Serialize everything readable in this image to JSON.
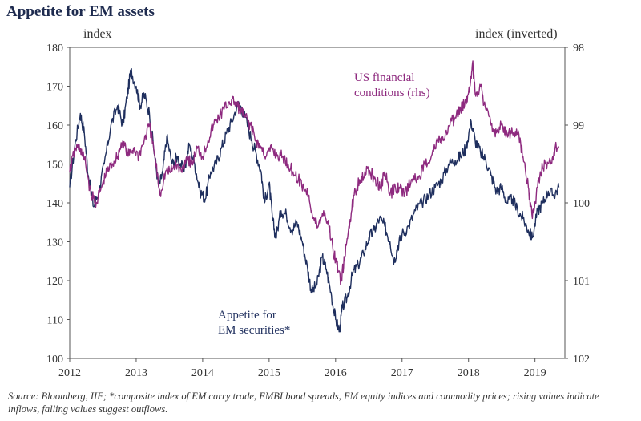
{
  "chart_data": {
    "type": "line",
    "title": "Appetite for EM assets",
    "left_axis": {
      "label": "index",
      "ylim": [
        100,
        180
      ],
      "ticks": [
        100,
        110,
        120,
        130,
        140,
        150,
        160,
        170,
        180
      ]
    },
    "right_axis": {
      "label": "index (inverted)",
      "ylim": [
        98,
        102
      ],
      "inverted": true,
      "ticks": [
        98,
        99,
        100,
        101,
        102
      ]
    },
    "x_axis": {
      "xlim": [
        2012,
        2019.45
      ],
      "ticks": [
        "2012",
        "2013",
        "2014",
        "2015",
        "2016",
        "2017",
        "2018",
        "2019"
      ]
    },
    "series": [
      {
        "name": "Appetite for EM securities*",
        "axis": "left",
        "color": "#1f2f5e",
        "annotation": "Appetite for\nEM securities*",
        "points": [
          [
            2012.0,
            144
          ],
          [
            2012.08,
            155
          ],
          [
            2012.16,
            163
          ],
          [
            2012.22,
            158
          ],
          [
            2012.28,
            147
          ],
          [
            2012.36,
            139
          ],
          [
            2012.44,
            143
          ],
          [
            2012.52,
            150
          ],
          [
            2012.62,
            160
          ],
          [
            2012.72,
            165
          ],
          [
            2012.8,
            160
          ],
          [
            2012.86,
            167
          ],
          [
            2012.92,
            174
          ],
          [
            2013.0,
            170
          ],
          [
            2013.06,
            165
          ],
          [
            2013.12,
            168
          ],
          [
            2013.2,
            163
          ],
          [
            2013.28,
            152
          ],
          [
            2013.34,
            144
          ],
          [
            2013.4,
            148
          ],
          [
            2013.46,
            157
          ],
          [
            2013.54,
            150
          ],
          [
            2013.62,
            152
          ],
          [
            2013.72,
            148
          ],
          [
            2013.8,
            155
          ],
          [
            2013.88,
            150
          ],
          [
            2013.96,
            143
          ],
          [
            2014.04,
            141
          ],
          [
            2014.12,
            148
          ],
          [
            2014.2,
            150
          ],
          [
            2014.28,
            154
          ],
          [
            2014.36,
            158
          ],
          [
            2014.44,
            161
          ],
          [
            2014.54,
            166
          ],
          [
            2014.64,
            162
          ],
          [
            2014.74,
            156
          ],
          [
            2014.8,
            153
          ],
          [
            2014.88,
            148
          ],
          [
            2014.93,
            140
          ],
          [
            2015.0,
            145
          ],
          [
            2015.05,
            136
          ],
          [
            2015.1,
            131
          ],
          [
            2015.18,
            138
          ],
          [
            2015.26,
            137
          ],
          [
            2015.34,
            133
          ],
          [
            2015.42,
            135
          ],
          [
            2015.5,
            130
          ],
          [
            2015.58,
            123
          ],
          [
            2015.64,
            117
          ],
          [
            2015.72,
            119
          ],
          [
            2015.8,
            126
          ],
          [
            2015.86,
            123
          ],
          [
            2015.94,
            116
          ],
          [
            2016.0,
            110
          ],
          [
            2016.06,
            107
          ],
          [
            2016.1,
            113
          ],
          [
            2016.18,
            116
          ],
          [
            2016.26,
            122
          ],
          [
            2016.34,
            124
          ],
          [
            2016.42,
            127
          ],
          [
            2016.5,
            131
          ],
          [
            2016.58,
            133
          ],
          [
            2016.66,
            136
          ],
          [
            2016.74,
            134
          ],
          [
            2016.82,
            130
          ],
          [
            2016.88,
            125
          ],
          [
            2016.94,
            129
          ],
          [
            2017.0,
            132
          ],
          [
            2017.1,
            134
          ],
          [
            2017.2,
            138
          ],
          [
            2017.3,
            140
          ],
          [
            2017.4,
            142
          ],
          [
            2017.5,
            144
          ],
          [
            2017.6,
            146
          ],
          [
            2017.7,
            150
          ],
          [
            2017.8,
            151
          ],
          [
            2017.88,
            152
          ],
          [
            2017.96,
            154
          ],
          [
            2018.04,
            161
          ],
          [
            2018.1,
            156
          ],
          [
            2018.18,
            153
          ],
          [
            2018.26,
            151
          ],
          [
            2018.34,
            147
          ],
          [
            2018.42,
            143
          ],
          [
            2018.5,
            144
          ],
          [
            2018.58,
            140
          ],
          [
            2018.66,
            141
          ],
          [
            2018.74,
            138
          ],
          [
            2018.82,
            136
          ],
          [
            2018.9,
            133
          ],
          [
            2018.96,
            131
          ],
          [
            2019.04,
            138
          ],
          [
            2019.12,
            140
          ],
          [
            2019.2,
            143
          ],
          [
            2019.28,
            142
          ],
          [
            2019.36,
            144
          ]
        ]
      },
      {
        "name": "US financial conditions (rhs)",
        "axis": "right",
        "color": "#8e2a7f",
        "annotation": "US financial\nconditions (rhs)",
        "points": [
          [
            2012.0,
            99.6
          ],
          [
            2012.08,
            99.3
          ],
          [
            2012.16,
            99.3
          ],
          [
            2012.24,
            99.5
          ],
          [
            2012.32,
            99.9
          ],
          [
            2012.4,
            100.0
          ],
          [
            2012.48,
            99.8
          ],
          [
            2012.56,
            99.6
          ],
          [
            2012.64,
            99.5
          ],
          [
            2012.72,
            99.4
          ],
          [
            2012.8,
            99.2
          ],
          [
            2012.88,
            99.4
          ],
          [
            2012.96,
            99.3
          ],
          [
            2013.04,
            99.4
          ],
          [
            2013.12,
            99.2
          ],
          [
            2013.2,
            99.0
          ],
          [
            2013.28,
            99.4
          ],
          [
            2013.36,
            99.9
          ],
          [
            2013.44,
            99.6
          ],
          [
            2013.52,
            99.6
          ],
          [
            2013.6,
            99.5
          ],
          [
            2013.68,
            99.6
          ],
          [
            2013.76,
            99.4
          ],
          [
            2013.84,
            99.5
          ],
          [
            2013.92,
            99.3
          ],
          [
            2014.0,
            99.4
          ],
          [
            2014.08,
            99.2
          ],
          [
            2014.16,
            99.0
          ],
          [
            2014.24,
            98.9
          ],
          [
            2014.32,
            98.8
          ],
          [
            2014.4,
            98.7
          ],
          [
            2014.48,
            98.7
          ],
          [
            2014.56,
            98.8
          ],
          [
            2014.64,
            98.9
          ],
          [
            2014.72,
            99.0
          ],
          [
            2014.8,
            99.2
          ],
          [
            2014.88,
            99.3
          ],
          [
            2014.96,
            99.4
          ],
          [
            2015.04,
            99.3
          ],
          [
            2015.12,
            99.4
          ],
          [
            2015.2,
            99.4
          ],
          [
            2015.28,
            99.5
          ],
          [
            2015.36,
            99.6
          ],
          [
            2015.44,
            99.7
          ],
          [
            2015.52,
            99.8
          ],
          [
            2015.6,
            99.9
          ],
          [
            2015.66,
            100.2
          ],
          [
            2015.74,
            100.3
          ],
          [
            2015.82,
            100.1
          ],
          [
            2015.9,
            100.3
          ],
          [
            2015.96,
            100.6
          ],
          [
            2016.02,
            100.8
          ],
          [
            2016.08,
            101.0
          ],
          [
            2016.14,
            100.7
          ],
          [
            2016.2,
            100.3
          ],
          [
            2016.28,
            99.9
          ],
          [
            2016.36,
            99.7
          ],
          [
            2016.44,
            99.6
          ],
          [
            2016.52,
            99.6
          ],
          [
            2016.6,
            99.7
          ],
          [
            2016.68,
            99.8
          ],
          [
            2016.74,
            99.6
          ],
          [
            2016.82,
            99.9
          ],
          [
            2016.9,
            99.8
          ],
          [
            2016.96,
            99.8
          ],
          [
            2017.04,
            99.9
          ],
          [
            2017.14,
            99.7
          ],
          [
            2017.24,
            99.7
          ],
          [
            2017.34,
            99.5
          ],
          [
            2017.44,
            99.4
          ],
          [
            2017.54,
            99.2
          ],
          [
            2017.62,
            99.2
          ],
          [
            2017.72,
            99.0
          ],
          [
            2017.8,
            98.9
          ],
          [
            2017.88,
            98.8
          ],
          [
            2017.96,
            98.7
          ],
          [
            2018.02,
            98.5
          ],
          [
            2018.06,
            98.2
          ],
          [
            2018.1,
            98.6
          ],
          [
            2018.18,
            98.5
          ],
          [
            2018.26,
            98.8
          ],
          [
            2018.34,
            99.0
          ],
          [
            2018.42,
            99.1
          ],
          [
            2018.5,
            99.0
          ],
          [
            2018.58,
            99.1
          ],
          [
            2018.66,
            99.1
          ],
          [
            2018.74,
            99.1
          ],
          [
            2018.82,
            99.4
          ],
          [
            2018.9,
            99.8
          ],
          [
            2018.96,
            100.2
          ],
          [
            2019.02,
            99.9
          ],
          [
            2019.08,
            99.6
          ],
          [
            2019.16,
            99.5
          ],
          [
            2019.24,
            99.5
          ],
          [
            2019.3,
            99.3
          ],
          [
            2019.36,
            99.3
          ]
        ]
      }
    ],
    "source": "Source: Bloomberg, IIF; *composite index of EM carry trade, EMBI bond spreads, EM equity indices and commodity prices; rising values indicate inflows, falling values suggest outflows."
  }
}
